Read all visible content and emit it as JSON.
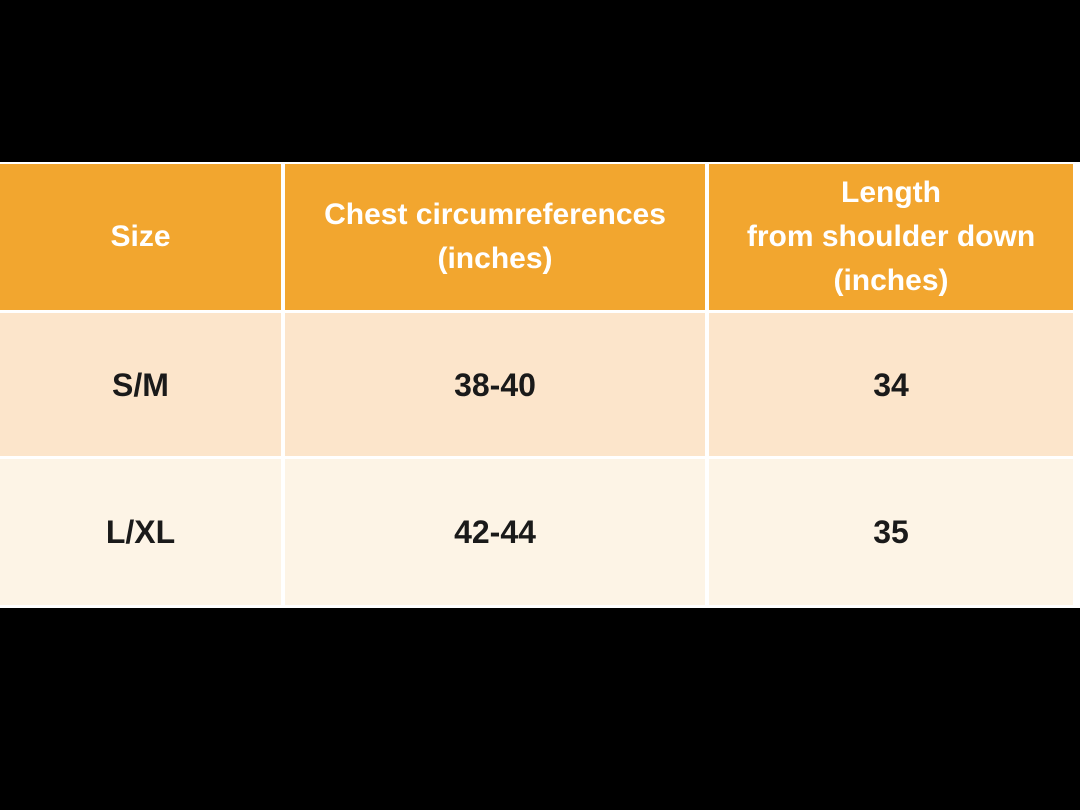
{
  "page": {
    "background_color": "#FFFFFF",
    "top_bar_color": "#000000",
    "bottom_bar_color": "#000000"
  },
  "table": {
    "colors": {
      "header_bg": "#F2A62F",
      "header_text": "#FFFFFF",
      "row_odd_bg": "#FCE5CB",
      "row_even_bg": "#FDF4E6",
      "body_text": "#1A1A1A",
      "divider": "#FFFFFF"
    },
    "headers": [
      {
        "id": "size",
        "label": "Size"
      },
      {
        "id": "chest",
        "label": "Chest circumreferences\n(inches)"
      },
      {
        "id": "length",
        "label": "Length\nfrom shoulder down\n(inches)"
      }
    ],
    "rows": [
      {
        "size": "S/M",
        "chest": "38-40",
        "length": "34"
      },
      {
        "size": "L/XL",
        "chest": "42-44",
        "length": "35"
      }
    ]
  },
  "chart_data": {
    "type": "table",
    "title": "",
    "columns": [
      "Size",
      "Chest circumreferences (inches)",
      "Length from shoulder down (inches)"
    ],
    "rows": [
      [
        "S/M",
        "38-40",
        "34"
      ],
      [
        "L/XL",
        "42-44",
        "35"
      ]
    ]
  }
}
